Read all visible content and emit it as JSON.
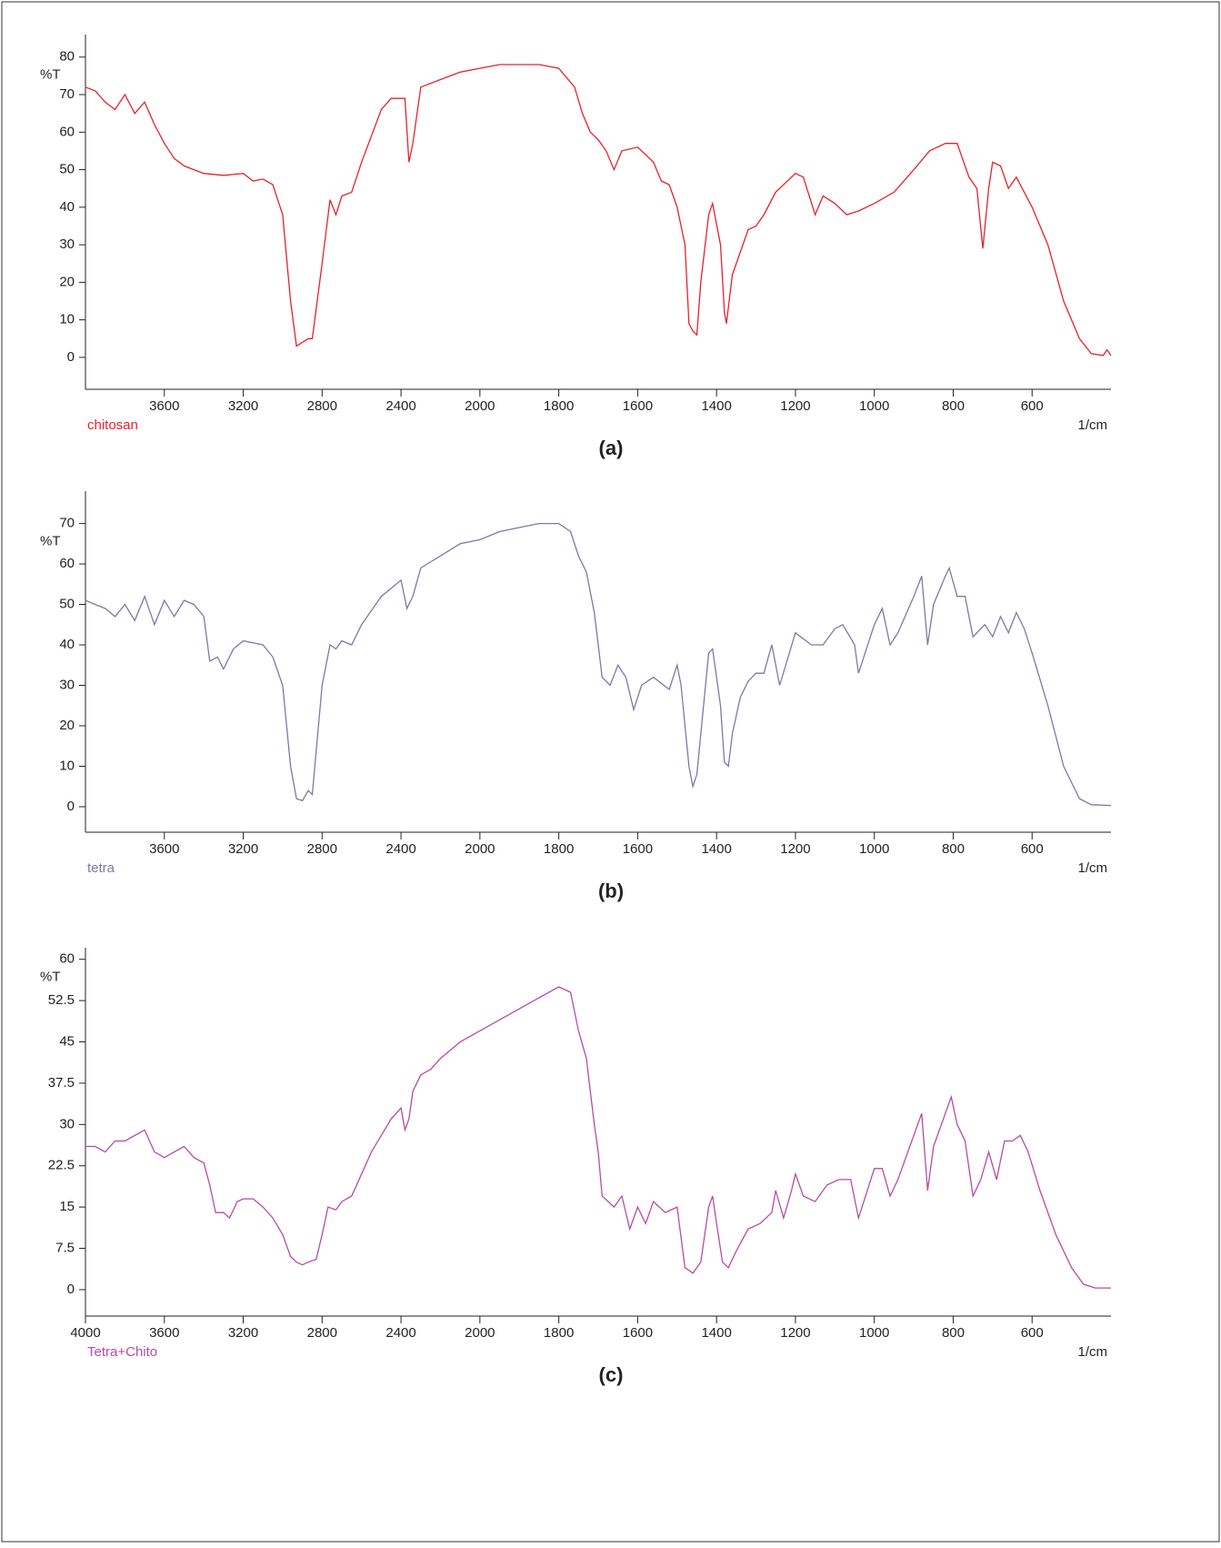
{
  "chart_data": [
    {
      "type": "line",
      "caption": "(a)",
      "ylabel": "%T",
      "xlabel": "1/cm",
      "xscale_break": 2000,
      "xlim": [
        4000,
        400
      ],
      "ylim": [
        -8.5,
        86
      ],
      "xticks": [
        3600,
        3200,
        2800,
        2400,
        2000,
        1800,
        1600,
        1400,
        1200,
        1000,
        800,
        600
      ],
      "yticks": [
        0,
        10,
        20,
        30,
        40,
        50,
        60,
        70,
        80
      ],
      "x": [
        4000,
        3950,
        3900,
        3850,
        3800,
        3750,
        3700,
        3650,
        3600,
        3550,
        3500,
        3450,
        3400,
        3300,
        3200,
        3150,
        3100,
        3050,
        3000,
        2960,
        2930,
        2900,
        2870,
        2850,
        2800,
        2760,
        2730,
        2700,
        2650,
        2600,
        2500,
        2450,
        2380,
        2360,
        2340,
        2300,
        2200,
        2100,
        2000,
        1950,
        1900,
        1850,
        1800,
        1760,
        1740,
        1720,
        1700,
        1680,
        1660,
        1640,
        1600,
        1560,
        1540,
        1520,
        1500,
        1480,
        1470,
        1460,
        1450,
        1440,
        1420,
        1410,
        1390,
        1380,
        1375,
        1360,
        1340,
        1320,
        1300,
        1280,
        1250,
        1200,
        1180,
        1150,
        1130,
        1100,
        1070,
        1040,
        1000,
        950,
        900,
        860,
        820,
        790,
        760,
        740,
        725,
        710,
        700,
        680,
        660,
        640,
        600,
        560,
        520,
        480,
        450,
        420,
        410,
        400
      ],
      "series": [
        {
          "name": "chitosan",
          "color": "#e8212b",
          "values": [
            72,
            71,
            68,
            66,
            70,
            65,
            68,
            62,
            57,
            53,
            51,
            50,
            49,
            48.5,
            49,
            47,
            47.5,
            46,
            38,
            15,
            3,
            4,
            5,
            5,
            25,
            42,
            38,
            43,
            44,
            52,
            66,
            69,
            69,
            52,
            57,
            72,
            74,
            76,
            77,
            78,
            78,
            78,
            77,
            72,
            65,
            60,
            58,
            55,
            50,
            55,
            56,
            52,
            47,
            46,
            40,
            30,
            9,
            7,
            6,
            20,
            38,
            41,
            30,
            12,
            9,
            22,
            28,
            34,
            35,
            38,
            44,
            49,
            48,
            38,
            43,
            41,
            38,
            39,
            41,
            44,
            50,
            55,
            57,
            57,
            48,
            45,
            29,
            45,
            52,
            51,
            45,
            48,
            40,
            30,
            15,
            5,
            1,
            0.5,
            2,
            0.5
          ]
        }
      ]
    },
    {
      "type": "line",
      "caption": "(b)",
      "ylabel": "%T",
      "xlabel": "1/cm",
      "xscale_break": 2000,
      "xlim": [
        4000,
        400
      ],
      "ylim": [
        -6.3,
        78
      ],
      "xticks": [
        3600,
        3200,
        2800,
        2400,
        2000,
        1800,
        1600,
        1400,
        1200,
        1000,
        800,
        600
      ],
      "yticks": [
        0,
        10,
        20,
        30,
        40,
        50,
        60,
        70
      ],
      "x": [
        4000,
        3950,
        3900,
        3850,
        3800,
        3750,
        3700,
        3650,
        3600,
        3550,
        3500,
        3450,
        3400,
        3370,
        3330,
        3300,
        3250,
        3200,
        3100,
        3050,
        3000,
        2960,
        2930,
        2900,
        2870,
        2850,
        2800,
        2760,
        2730,
        2700,
        2650,
        2600,
        2500,
        2400,
        2370,
        2340,
        2300,
        2200,
        2100,
        2000,
        1950,
        1900,
        1850,
        1800,
        1770,
        1750,
        1730,
        1710,
        1700,
        1690,
        1670,
        1650,
        1630,
        1610,
        1590,
        1560,
        1520,
        1500,
        1490,
        1470,
        1460,
        1450,
        1420,
        1410,
        1390,
        1380,
        1370,
        1360,
        1340,
        1320,
        1300,
        1280,
        1260,
        1240,
        1200,
        1160,
        1130,
        1100,
        1080,
        1050,
        1040,
        1000,
        980,
        960,
        940,
        900,
        880,
        865,
        850,
        820,
        810,
        790,
        770,
        750,
        720,
        700,
        680,
        660,
        640,
        620,
        600,
        560,
        520,
        480,
        450,
        400
      ],
      "series": [
        {
          "name": "tetra",
          "color": "#7a7aa8",
          "values": [
            51,
            50,
            49,
            47,
            50,
            46,
            52,
            45,
            51,
            47,
            51,
            50,
            47,
            36,
            37,
            34,
            39,
            41,
            40,
            37,
            30,
            10,
            2,
            1.5,
            4,
            3,
            30,
            40,
            39,
            41,
            40,
            45,
            52,
            56,
            49,
            52,
            59,
            62,
            65,
            66,
            68,
            69,
            70,
            70,
            68,
            62,
            58,
            48,
            40,
            32,
            30,
            35,
            32,
            24,
            30,
            32,
            29,
            35,
            30,
            10,
            5,
            8,
            38,
            39,
            25,
            11,
            10,
            18,
            27,
            31,
            33,
            33,
            40,
            30,
            43,
            40,
            40,
            44,
            45,
            40,
            33,
            45,
            49,
            40,
            43,
            52,
            57,
            40,
            50,
            57,
            59,
            52,
            52,
            42,
            45,
            42,
            47,
            43,
            48,
            44,
            38,
            25,
            10,
            2,
            0.5,
            0.3
          ]
        }
      ]
    },
    {
      "type": "line",
      "caption": "(c)",
      "ylabel": "%T",
      "xlabel": "1/cm",
      "xscale_break": 2000,
      "xlim": [
        4000,
        400
      ],
      "ylim": [
        -4.8,
        62.1
      ],
      "xticks": [
        4000,
        3600,
        3200,
        2800,
        2400,
        2000,
        1800,
        1600,
        1400,
        1200,
        1000,
        800,
        600
      ],
      "yticks": [
        0,
        7.5,
        15,
        22.5,
        30,
        37.5,
        45,
        52.5,
        60
      ],
      "x": [
        4000,
        3950,
        3900,
        3850,
        3800,
        3750,
        3700,
        3650,
        3600,
        3550,
        3500,
        3450,
        3400,
        3370,
        3340,
        3300,
        3270,
        3230,
        3200,
        3150,
        3100,
        3050,
        3000,
        2960,
        2930,
        2900,
        2870,
        2830,
        2800,
        2770,
        2730,
        2700,
        2650,
        2600,
        2550,
        2500,
        2450,
        2400,
        2380,
        2360,
        2340,
        2300,
        2250,
        2200,
        2100,
        2000,
        1950,
        1900,
        1850,
        1800,
        1770,
        1750,
        1730,
        1720,
        1710,
        1700,
        1690,
        1660,
        1640,
        1620,
        1600,
        1580,
        1560,
        1530,
        1500,
        1480,
        1460,
        1440,
        1420,
        1410,
        1400,
        1385,
        1370,
        1350,
        1320,
        1290,
        1260,
        1250,
        1230,
        1210,
        1200,
        1180,
        1150,
        1120,
        1090,
        1060,
        1040,
        1000,
        980,
        960,
        940,
        910,
        880,
        865,
        850,
        820,
        805,
        790,
        770,
        750,
        730,
        710,
        690,
        670,
        650,
        630,
        610,
        580,
        540,
        500,
        470,
        440,
        400
      ],
      "series": [
        {
          "name": "Tetra+Chito",
          "color": "#b64ba8",
          "values": [
            26,
            26,
            25,
            27,
            27,
            28,
            29,
            25,
            24,
            25,
            26,
            24,
            23,
            19,
            14,
            14,
            13,
            16,
            16.5,
            16.5,
            15,
            13,
            10,
            6,
            5,
            4.5,
            5,
            5.5,
            10,
            15,
            14.5,
            16,
            17,
            21,
            25,
            28,
            31,
            33,
            29,
            31,
            36,
            39,
            40,
            42,
            45,
            47,
            49,
            51,
            53,
            55,
            54,
            47,
            42,
            36,
            30,
            25,
            17,
            15,
            17,
            11,
            15,
            12,
            16,
            14,
            15,
            4,
            3,
            5,
            15,
            17,
            12,
            5,
            4,
            7,
            11,
            12,
            14,
            18,
            13,
            18,
            21,
            17,
            16,
            19,
            20,
            20,
            13,
            22,
            22,
            17,
            20,
            26,
            32,
            18,
            26,
            32,
            35,
            30,
            27,
            17,
            20,
            25,
            20,
            27,
            27,
            28,
            25,
            18,
            10,
            4,
            1,
            0.3,
            0.3
          ]
        }
      ]
    }
  ]
}
